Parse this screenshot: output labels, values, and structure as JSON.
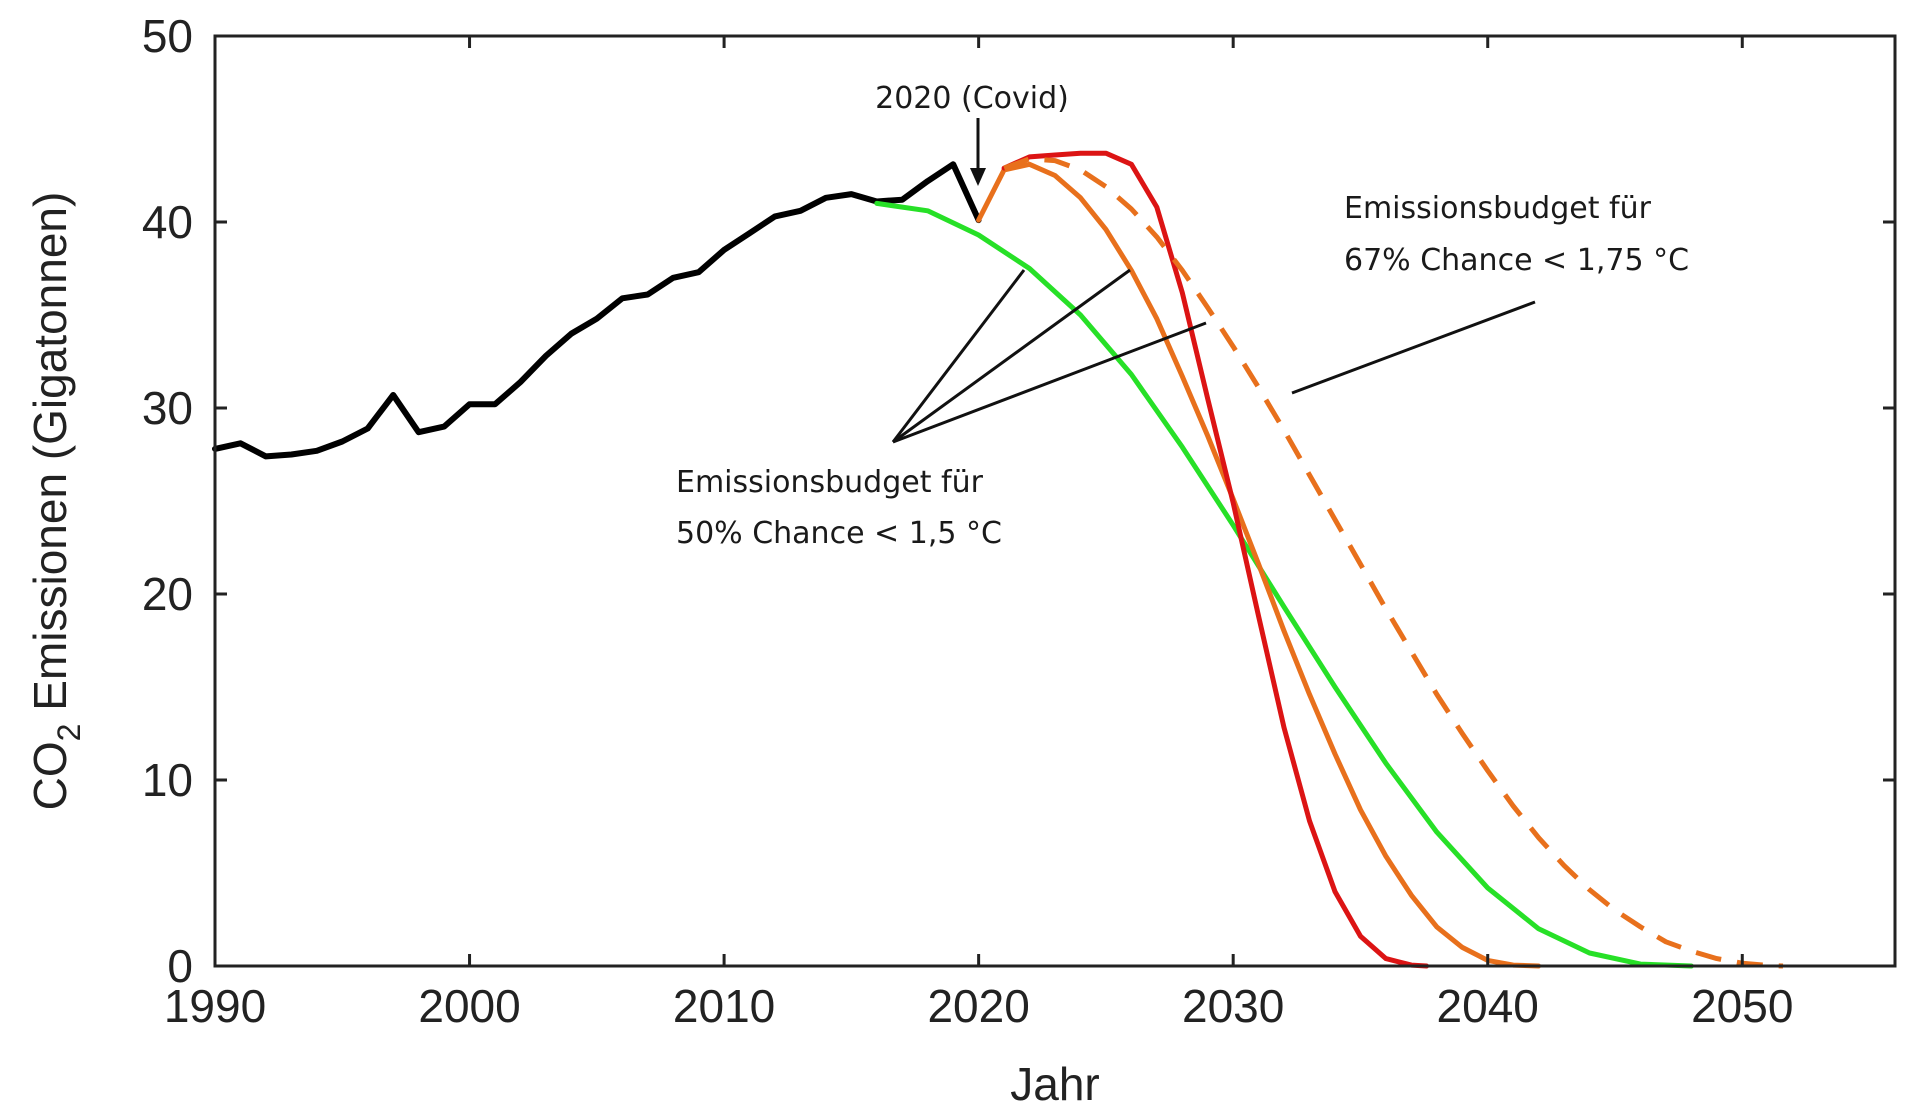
{
  "chart_data": {
    "type": "line",
    "xlabel": "Jahr",
    "ylabel_main": "CO",
    "ylabel_sub": "2",
    "ylabel_rest": " Emissionen (Gigatonnen)",
    "xlim": [
      1990,
      2056
    ],
    "ylim": [
      0,
      50
    ],
    "x_ticks": [
      1990,
      2000,
      2010,
      2020,
      2030,
      2040,
      2050
    ],
    "y_ticks": [
      0,
      10,
      20,
      30,
      40,
      50
    ],
    "grid": false,
    "series": [
      {
        "color": "#000000",
        "style": "solid",
        "x": [
          1990,
          1991,
          1992,
          1993,
          1994,
          1995,
          1996,
          1997,
          1998,
          1999,
          2000,
          2001,
          2002,
          2003,
          2004,
          2005,
          2006,
          2007,
          2008,
          2009,
          2010,
          2011,
          2012,
          2013,
          2014,
          2015,
          2016,
          2017,
          2018,
          2019,
          2020
        ],
        "y": [
          27.8,
          28.1,
          27.4,
          27.5,
          27.7,
          28.2,
          28.9,
          30.7,
          28.7,
          29.0,
          30.2,
          30.2,
          31.4,
          32.8,
          34.0,
          34.8,
          35.9,
          36.1,
          37.0,
          37.3,
          38.5,
          39.4,
          40.3,
          40.6,
          41.3,
          41.5,
          41.1,
          41.2,
          42.2,
          43.1,
          40.1
        ]
      },
      {
        "color": "#27e027",
        "style": "solid",
        "x": [
          2016,
          2018,
          2020,
          2022,
          2024,
          2026,
          2028,
          2030,
          2032,
          2034,
          2036,
          2038,
          2040,
          2042,
          2044,
          2046,
          2048
        ],
        "y": [
          41.0,
          40.6,
          39.3,
          37.5,
          35.0,
          31.8,
          27.9,
          23.7,
          19.3,
          15.0,
          10.9,
          7.2,
          4.2,
          2.0,
          0.7,
          0.1,
          0.0
        ]
      },
      {
        "color": "#e8701c",
        "style": "solid",
        "x": [
          2020,
          2021,
          2022,
          2023,
          2024,
          2025,
          2026,
          2027,
          2028,
          2029,
          2030,
          2031,
          2032,
          2033,
          2034,
          2035,
          2036,
          2037,
          2038,
          2039,
          2040,
          2041,
          2042
        ],
        "y": [
          40.1,
          42.8,
          43.1,
          42.5,
          41.3,
          39.6,
          37.4,
          34.8,
          31.7,
          28.5,
          25.1,
          21.6,
          18.0,
          14.6,
          11.4,
          8.4,
          5.9,
          3.8,
          2.1,
          1.0,
          0.3,
          0.05,
          0.0
        ]
      },
      {
        "color": "#dc1414",
        "style": "solid",
        "x": [
          2021,
          2022,
          2023,
          2024,
          2025,
          2026,
          2027,
          2028,
          2029,
          2030,
          2031,
          2032,
          2033,
          2034,
          2035,
          2036,
          2037,
          2037.6
        ],
        "y": [
          42.9,
          43.5,
          43.6,
          43.7,
          43.7,
          43.1,
          40.8,
          36.2,
          30.5,
          24.9,
          18.8,
          12.8,
          7.8,
          4.0,
          1.6,
          0.4,
          0.05,
          0.0
        ]
      },
      {
        "color": "#e8701c",
        "style": "dashed",
        "x": [
          2021,
          2022,
          2023,
          2024,
          2025,
          2026,
          2027,
          2028,
          2029,
          2030,
          2031,
          2032,
          2033,
          2034,
          2035,
          2036,
          2037,
          2038,
          2039,
          2040,
          2041,
          2042,
          2043,
          2044,
          2045,
          2046,
          2047,
          2048,
          2049,
          2050,
          2051,
          2051.6
        ],
        "y": [
          42.9,
          43.4,
          43.3,
          42.8,
          41.9,
          40.7,
          39.2,
          37.4,
          35.4,
          33.3,
          31.1,
          28.8,
          26.4,
          24.0,
          21.6,
          19.2,
          16.9,
          14.6,
          12.5,
          10.5,
          8.6,
          6.9,
          5.4,
          4.1,
          3.0,
          2.1,
          1.3,
          0.8,
          0.4,
          0.15,
          0.03,
          0.0
        ]
      }
    ],
    "annotations": [
      {
        "text": "2020 (Covid)"
      },
      {
        "line1": "Emissionsbudget für",
        "line2": "50% Chance < 1,5 °C"
      },
      {
        "line1": "Emissionsbudget für",
        "line2": "67% Chance < 1,75 °C"
      }
    ]
  }
}
